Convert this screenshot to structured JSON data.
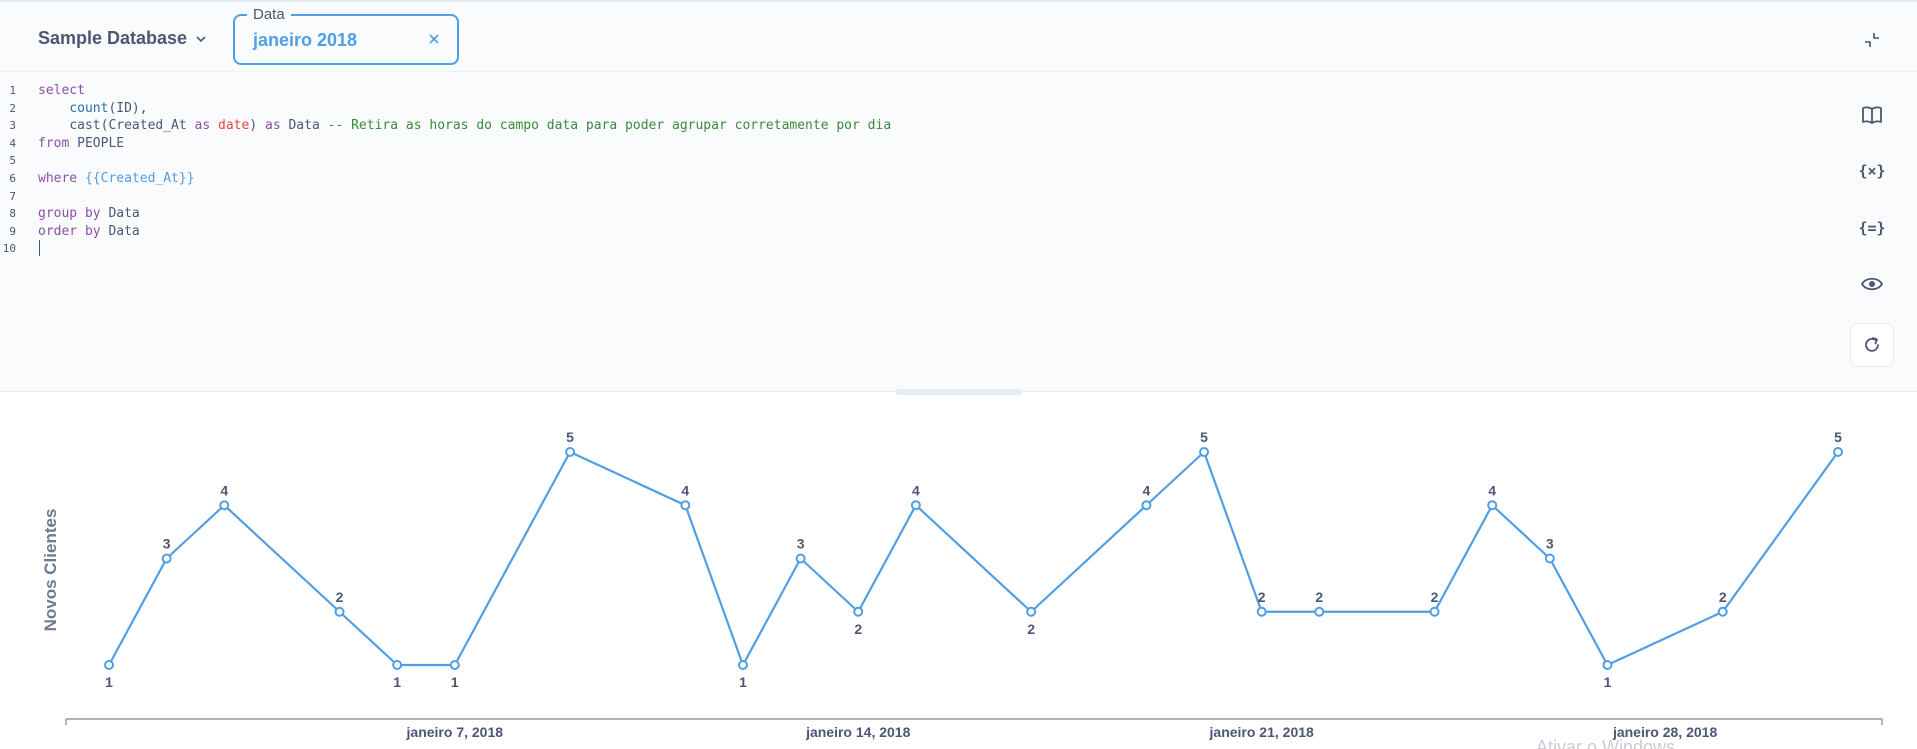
{
  "toolbar": {
    "database_label": "Sample Database",
    "parameter": {
      "label": "Data",
      "value": "janeiro 2018"
    }
  },
  "editor": {
    "line_numbers": [
      "1",
      "2",
      "3",
      "4",
      "5",
      "6",
      "7",
      "8",
      "9",
      "10"
    ],
    "tokens": {
      "l1_select": "select",
      "l2_indent": "    ",
      "l2_count": "count",
      "l2_rest": "(ID),",
      "l3_indent": "    ",
      "l3_cast": "cast(Created_At ",
      "l3_as1": "as",
      "l3_sp1": " ",
      "l3_date": "date",
      "l3_close": ") ",
      "l3_as2": "as",
      "l3_data": " Data ",
      "l3_comment": "-- Retira as horas do campo data para poder agrupar corretamente por dia",
      "l4_from": "from",
      "l4_table": " PEOPLE",
      "l6_where": "where",
      "l6_sp": " ",
      "l6_tag": "{{Created_At}}",
      "l8_group": "group",
      "l8_sp": " ",
      "l8_by": "by",
      "l8_col": " Data",
      "l9_order": "order",
      "l9_sp": " ",
      "l9_by": "by",
      "l9_col": " Data"
    }
  },
  "sidebar_icons": {
    "reference": "book-icon",
    "variables": "{×}",
    "snippets": "{=}",
    "preview": "eye-icon",
    "run": "refresh-icon"
  },
  "colors": {
    "accent": "#509ee3",
    "text": "#4c5773",
    "keyword": "#8d4fa8",
    "comment": "#3b8b3b",
    "type": "#e8453c"
  },
  "watermark": "Ativar o Windows",
  "chart_data": {
    "type": "line",
    "ylabel": "Novos Clientes",
    "xlabel": "",
    "x": [
      "2018-01-01",
      "2018-01-02",
      "2018-01-03",
      "2018-01-05",
      "2018-01-06",
      "2018-01-07",
      "2018-01-09",
      "2018-01-11",
      "2018-01-12",
      "2018-01-13",
      "2018-01-14",
      "2018-01-15",
      "2018-01-17",
      "2018-01-19",
      "2018-01-20",
      "2018-01-21",
      "2018-01-22",
      "2018-01-24",
      "2018-01-25",
      "2018-01-26",
      "2018-01-27",
      "2018-01-29",
      "2018-01-31"
    ],
    "values": [
      1,
      3,
      4,
      2,
      1,
      1,
      5,
      4,
      1,
      3,
      2,
      4,
      2,
      4,
      5,
      2,
      2,
      2,
      4,
      3,
      1,
      2,
      5
    ],
    "xticks": [
      {
        "day": 7,
        "label": "janeiro 7, 2018"
      },
      {
        "day": 14,
        "label": "janeiro 14, 2018"
      },
      {
        "day": 21,
        "label": "janeiro 21, 2018"
      },
      {
        "day": 28,
        "label": "janeiro 28, 2018"
      }
    ],
    "ylim": [
      1,
      5
    ],
    "series_color": "#509ee3"
  }
}
